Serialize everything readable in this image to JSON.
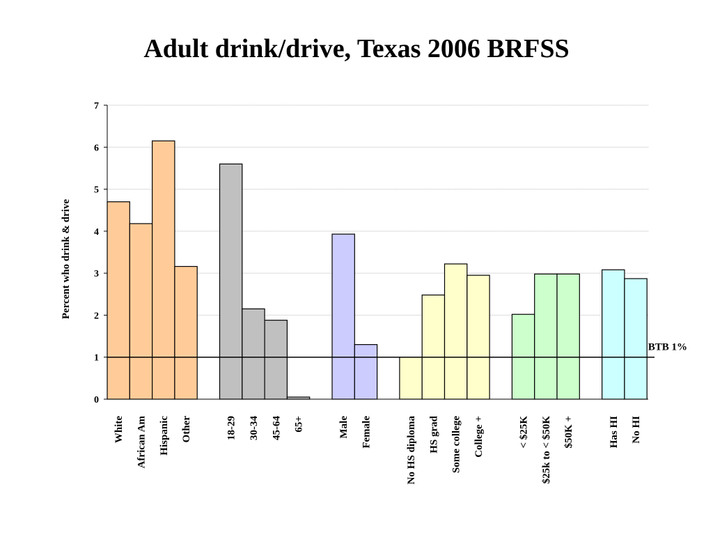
{
  "chart_data": {
    "type": "bar",
    "title": "Adult drink/drive, Texas 2006 BRFSS",
    "ylabel": "Percent who drink & drive",
    "xlabel": "",
    "ylim": [
      0,
      7
    ],
    "yticks": [
      0,
      1,
      2,
      3,
      4,
      5,
      6,
      7
    ],
    "grid": true,
    "legend": "none",
    "groups": [
      {
        "color": "#FFCC99",
        "categories": [
          "White",
          "African Am",
          "Hispanic",
          "Other"
        ],
        "values": [
          4.7,
          4.18,
          6.15,
          3.16
        ]
      },
      {
        "color": "#C0C0C0",
        "categories": [
          "18-29",
          "30-34",
          "45-64",
          "65+"
        ],
        "values": [
          5.6,
          2.15,
          1.88,
          0.05
        ]
      },
      {
        "color": "#CCCCFF",
        "categories": [
          "Male",
          "Female"
        ],
        "values": [
          3.93,
          1.3
        ]
      },
      {
        "color": "#FFFFCC",
        "categories": [
          "No HS diploma",
          "HS grad",
          "Some college",
          "College +"
        ],
        "values": [
          1.0,
          2.48,
          3.22,
          2.95
        ]
      },
      {
        "color": "#CCFFCC",
        "categories": [
          "< $25K",
          "$25k to < $50K",
          "$50K +"
        ],
        "values": [
          2.02,
          2.98,
          2.98
        ]
      },
      {
        "color": "#CCFFFF",
        "categories": [
          "Has HI",
          "No HI"
        ],
        "values": [
          3.08,
          2.87
        ]
      }
    ],
    "reference_line": {
      "value": 1,
      "label": "BTB 1%"
    }
  }
}
